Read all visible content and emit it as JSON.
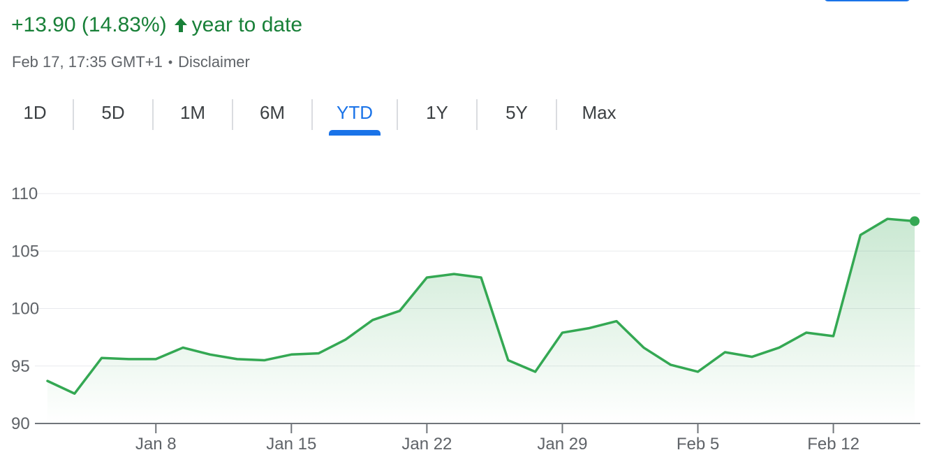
{
  "header": {
    "change_text": "+13.90 (14.83%)",
    "period_text": "year to date",
    "timestamp": "Feb 17, 17:35 GMT+1",
    "separator": "•",
    "disclaimer": "Disclaimer",
    "arrow_icon": "arrow-up-icon"
  },
  "tabs": [
    {
      "label": "1D",
      "active": false
    },
    {
      "label": "5D",
      "active": false
    },
    {
      "label": "1M",
      "active": false
    },
    {
      "label": "6M",
      "active": false
    },
    {
      "label": "YTD",
      "active": true
    },
    {
      "label": "1Y",
      "active": false
    },
    {
      "label": "5Y",
      "active": false
    },
    {
      "label": "Max",
      "active": false
    }
  ],
  "colors": {
    "positive": "#188038",
    "line": "#34a853",
    "accent": "#1a73e8",
    "grid": "#e8eaed",
    "axis_text": "#5f6368"
  },
  "chart_data": {
    "type": "line",
    "title": "",
    "xlabel": "",
    "ylabel": "",
    "ylim": [
      90,
      110
    ],
    "y_ticks": [
      "90",
      "95",
      "100",
      "105",
      "110"
    ],
    "x_ticks": [
      "Jan 8",
      "Jan 15",
      "Jan 22",
      "Jan 29",
      "Feb 5",
      "Feb 12"
    ],
    "grid": true,
    "fill_under_line": true,
    "last_point_marker": true,
    "series": [
      {
        "points": [
          {
            "x": "2024-01-02",
            "y": 93.7
          },
          {
            "x": "2024-01-03",
            "y": 92.6
          },
          {
            "x": "2024-01-04",
            "y": 95.7
          },
          {
            "x": "2024-01-05",
            "y": 95.6
          },
          {
            "x": "2024-01-08",
            "y": 95.6
          },
          {
            "x": "2024-01-09",
            "y": 96.6
          },
          {
            "x": "2024-01-10",
            "y": 96.0
          },
          {
            "x": "2024-01-11",
            "y": 95.6
          },
          {
            "x": "2024-01-12",
            "y": 95.5
          },
          {
            "x": "2024-01-15",
            "y": 96.0
          },
          {
            "x": "2024-01-16",
            "y": 96.1
          },
          {
            "x": "2024-01-17",
            "y": 97.3
          },
          {
            "x": "2024-01-18",
            "y": 99.0
          },
          {
            "x": "2024-01-19",
            "y": 99.8
          },
          {
            "x": "2024-01-22",
            "y": 102.7
          },
          {
            "x": "2024-01-23",
            "y": 103.0
          },
          {
            "x": "2024-01-24",
            "y": 102.7
          },
          {
            "x": "2024-01-25",
            "y": 95.5
          },
          {
            "x": "2024-01-26",
            "y": 94.5
          },
          {
            "x": "2024-01-29",
            "y": 97.9
          },
          {
            "x": "2024-01-30",
            "y": 98.3
          },
          {
            "x": "2024-01-31",
            "y": 98.9
          },
          {
            "x": "2024-02-01",
            "y": 96.6
          },
          {
            "x": "2024-02-02",
            "y": 95.1
          },
          {
            "x": "2024-02-05",
            "y": 94.5
          },
          {
            "x": "2024-02-06",
            "y": 96.2
          },
          {
            "x": "2024-02-07",
            "y": 95.8
          },
          {
            "x": "2024-02-08",
            "y": 96.6
          },
          {
            "x": "2024-02-09",
            "y": 97.9
          },
          {
            "x": "2024-02-12",
            "y": 97.6
          },
          {
            "x": "2024-02-13",
            "y": 106.4
          },
          {
            "x": "2024-02-14",
            "y": 107.8
          },
          {
            "x": "2024-02-15",
            "y": 107.6
          }
        ]
      }
    ]
  }
}
